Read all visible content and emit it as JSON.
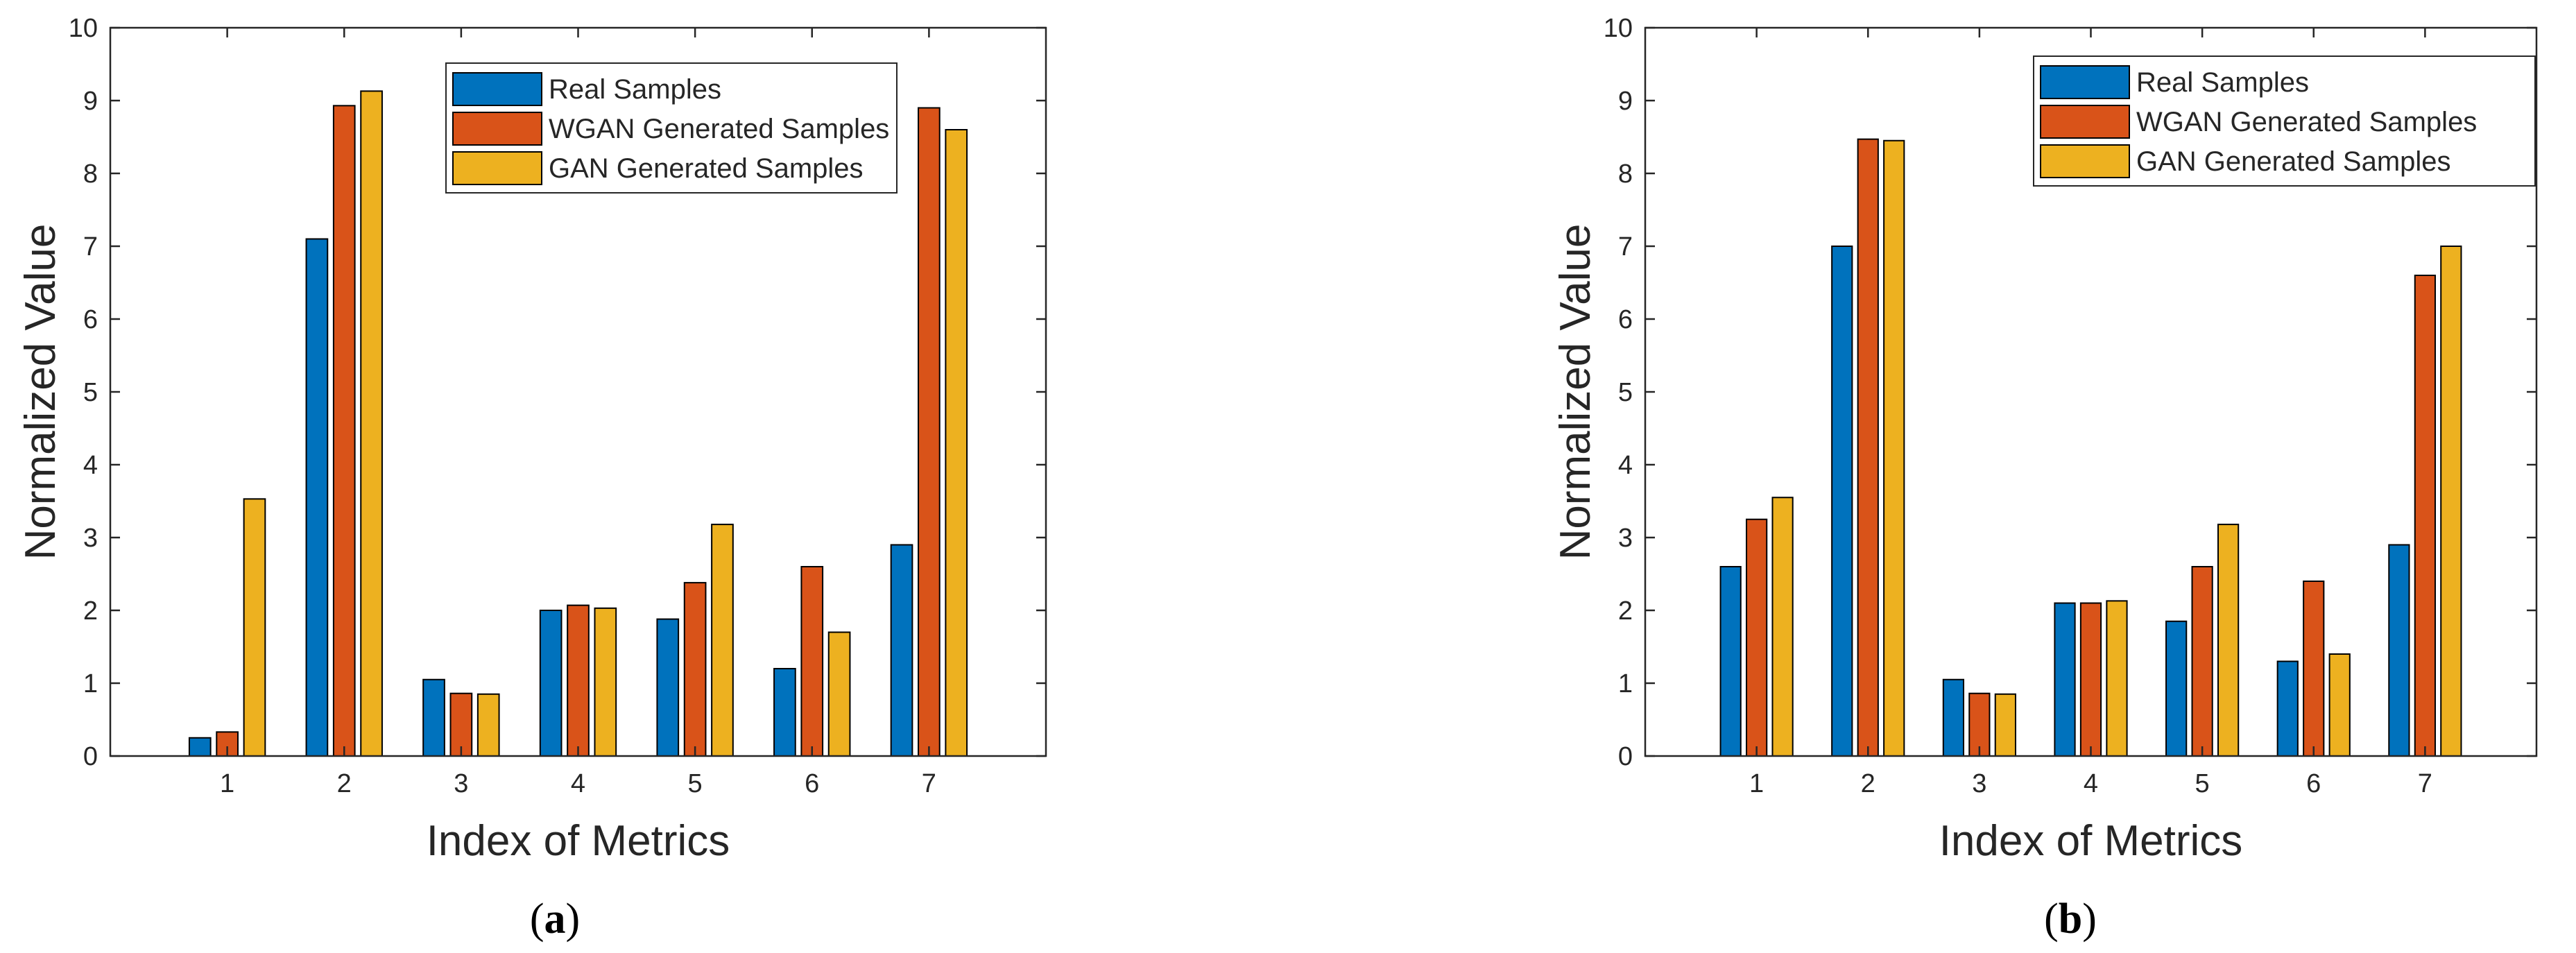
{
  "chart_data": [
    {
      "type": "bar",
      "panel": "(a)",
      "panel_letter": "a",
      "title": "",
      "xlabel": "Index of Metrics",
      "ylabel": "Normalized Value",
      "xlim": [
        0,
        8
      ],
      "ylim": [
        0,
        10
      ],
      "categories": [
        "1",
        "2",
        "3",
        "4",
        "5",
        "6",
        "7"
      ],
      "yticks": [
        "0",
        "1",
        "2",
        "3",
        "4",
        "5",
        "6",
        "7",
        "8",
        "9",
        "10"
      ],
      "legend_position": "top-center",
      "series": [
        {
          "name": "Real Samples",
          "color": "#0072BD",
          "values": [
            0.25,
            7.1,
            1.05,
            2.0,
            1.88,
            1.2,
            2.9
          ]
        },
        {
          "name": "WGAN Generated Samples",
          "color": "#D95319",
          "values": [
            0.33,
            8.93,
            0.86,
            2.07,
            2.38,
            2.6,
            8.9
          ]
        },
        {
          "name": "GAN Generated Samples",
          "color": "#EDB120",
          "values": [
            3.53,
            9.13,
            0.85,
            2.03,
            3.18,
            1.7,
            8.6
          ]
        }
      ]
    },
    {
      "type": "bar",
      "panel": "(b)",
      "panel_letter": "b",
      "title": "",
      "xlabel": "Index of Metrics",
      "ylabel": "Normalized Value",
      "xlim": [
        0,
        8
      ],
      "ylim": [
        0,
        10
      ],
      "categories": [
        "1",
        "2",
        "3",
        "4",
        "5",
        "6",
        "7"
      ],
      "yticks": [
        "0",
        "1",
        "2",
        "3",
        "4",
        "5",
        "6",
        "7",
        "8",
        "9",
        "10"
      ],
      "legend_position": "top-right",
      "series": [
        {
          "name": "Real Samples",
          "color": "#0072BD",
          "values": [
            2.6,
            7.0,
            1.05,
            2.1,
            1.85,
            1.3,
            2.9
          ]
        },
        {
          "name": "WGAN Generated Samples",
          "color": "#D95319",
          "values": [
            3.25,
            8.47,
            0.86,
            2.1,
            2.6,
            2.4,
            6.6
          ]
        },
        {
          "name": "GAN Generated Samples",
          "color": "#EDB120",
          "values": [
            3.55,
            8.45,
            0.85,
            2.13,
            3.18,
            1.4,
            7.0
          ]
        }
      ]
    }
  ]
}
